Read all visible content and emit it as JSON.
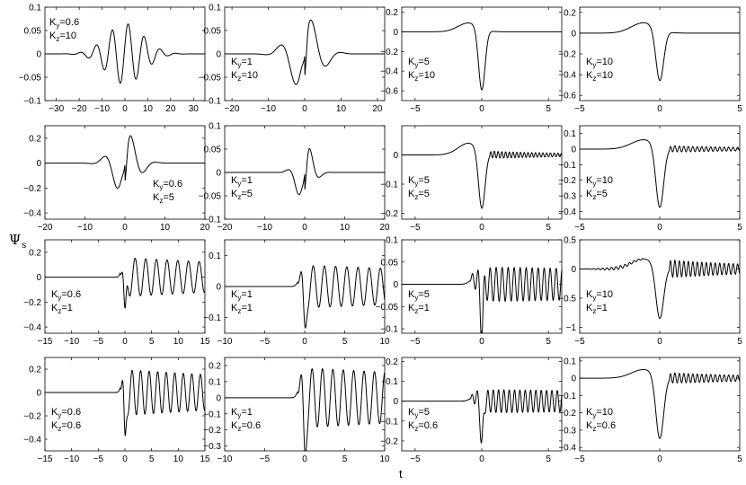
{
  "figure": {
    "ylabel_main": "Ψ",
    "ylabel_sub": "s",
    "xlabel": "t"
  },
  "chart_data": [
    {
      "type": "line",
      "row": 0,
      "col": 0,
      "shape": "gabor",
      "period": 7,
      "decay": 8,
      "amp": 0.065,
      "tick_amp": [
        0.6,
        10
      ],
      "xlim": [
        -35,
        35
      ],
      "ylim": [
        -0.1,
        0.1
      ],
      "xticks": [
        -30,
        -20,
        -10,
        0,
        10,
        20,
        30
      ],
      "xtick_labels": [
        "−30",
        "−20",
        "−10",
        "0",
        "10",
        "20",
        "30"
      ],
      "yticks": [
        -0.1,
        -0.05,
        0,
        0.05,
        0.1
      ],
      "ytick_labels": [
        "−0.1",
        "−0.05",
        "0",
        "0.05",
        "0.1"
      ],
      "annotation": {
        "ky": "0.6",
        "kz": "10",
        "pos": "top-left"
      }
    },
    {
      "type": "line",
      "row": 0,
      "col": 1,
      "shape": "gabor",
      "period": 9,
      "decay": 4,
      "amp": 0.08,
      "sharp": true,
      "xlim": [
        -22,
        22
      ],
      "ylim": [
        -0.1,
        0.1
      ],
      "xticks": [
        -20,
        -10,
        0,
        10,
        20
      ],
      "xtick_labels": [
        "−20",
        "−10",
        "0",
        "10",
        "20"
      ],
      "yticks": [
        -0.1,
        -0.05,
        0,
        0.05,
        0.1
      ],
      "ytick_labels": [
        "−0.1",
        "−0.05",
        "0",
        "0.05",
        "0.1"
      ],
      "annotation": {
        "ky": "1",
        "kz": "10",
        "pos": "bottom-left"
      }
    },
    {
      "type": "line",
      "row": 0,
      "col": 2,
      "shape": "dip",
      "min": -0.63,
      "pre": 0.09,
      "post": 0,
      "xlim": [
        -6,
        6
      ],
      "ylim": [
        -0.7,
        0.25
      ],
      "xticks": [
        -5,
        0,
        5
      ],
      "xtick_labels": [
        "−5",
        "0",
        "5"
      ],
      "yticks": [
        -0.6,
        -0.4,
        -0.2,
        0,
        0.2
      ],
      "ytick_labels": [
        "−0.6",
        "−0.4",
        "−0.2",
        "0",
        "0.2"
      ],
      "annotation": {
        "ky": "5",
        "kz": "10",
        "pos": "bottom-left"
      }
    },
    {
      "type": "line",
      "row": 0,
      "col": 3,
      "shape": "dip",
      "min": -0.5,
      "pre": 0.1,
      "post": 0,
      "xlim": [
        -5,
        5
      ],
      "ylim": [
        -0.65,
        0.25
      ],
      "xticks": [
        -5,
        0,
        5
      ],
      "xtick_labels": [
        "−5",
        "0",
        "5"
      ],
      "yticks": [
        -0.6,
        -0.4,
        -0.2,
        0,
        0.2
      ],
      "ytick_labels": [
        "−0.6",
        "−0.4",
        "−0.2",
        "0",
        "0.2"
      ],
      "annotation": {
        "ky": "10",
        "kz": "10",
        "pos": "bottom-left"
      }
    },
    {
      "type": "line",
      "row": 1,
      "col": 0,
      "shape": "gabor",
      "period": 7,
      "decay": 3,
      "amp": 0.25,
      "sharp": true,
      "xlim": [
        -20,
        20
      ],
      "ylim": [
        -0.45,
        0.3
      ],
      "xticks": [
        -20,
        -10,
        0,
        10,
        20
      ],
      "xtick_labels": [
        "−20",
        "−10",
        "0",
        "10",
        "20"
      ],
      "yticks": [
        -0.4,
        -0.2,
        0,
        0.2
      ],
      "ytick_labels": [
        "−0.4",
        "−0.2",
        "0",
        "0.2"
      ],
      "annotation": {
        "ky": "0.6",
        "kz": "5",
        "pos": "bottom-right"
      }
    },
    {
      "type": "line",
      "row": 1,
      "col": 1,
      "shape": "gabor",
      "period": 6,
      "decay": 2,
      "amp": 0.065,
      "sharp": true,
      "xlim": [
        -20,
        20
      ],
      "ylim": [
        -0.1,
        0.1
      ],
      "xticks": [
        -20,
        -10,
        0,
        10,
        20
      ],
      "xtick_labels": [
        "−20",
        "−10",
        "0",
        "10",
        "20"
      ],
      "yticks": [
        -0.1,
        -0.05,
        0,
        0.05,
        0.1
      ],
      "ytick_labels": [
        "−0.1",
        "−0.05",
        "0",
        "0.05",
        "0.1"
      ],
      "annotation": {
        "ky": "1",
        "kz": "5",
        "pos": "bottom-left"
      }
    },
    {
      "type": "line",
      "row": 1,
      "col": 2,
      "shape": "dip_osc",
      "min": -0.2,
      "pre": 0.04,
      "osc": 0.012,
      "xlim": [
        -6,
        6
      ],
      "ylim": [
        -0.22,
        0.1
      ],
      "xticks": [
        -5,
        0,
        5
      ],
      "xtick_labels": [
        "−5",
        "0",
        "5"
      ],
      "yticks": [
        -0.2,
        -0.1,
        0
      ],
      "ytick_labels": [
        "−0.2",
        "−0.1",
        "0"
      ],
      "annotation": {
        "ky": "5",
        "kz": "5",
        "pos": "bottom-left"
      }
    },
    {
      "type": "line",
      "row": 1,
      "col": 3,
      "shape": "dip_osc",
      "min": -0.4,
      "pre": 0.06,
      "osc": 0.02,
      "xlim": [
        -5,
        5
      ],
      "ylim": [
        -0.45,
        0.15
      ],
      "xticks": [
        -5,
        0,
        5
      ],
      "xtick_labels": [
        "−5",
        "0",
        "5"
      ],
      "yticks": [
        -0.4,
        -0.3,
        -0.2,
        -0.1,
        0,
        0.1
      ],
      "ytick_labels": [
        "−0.4",
        "−0.3",
        "−0.2",
        "−0.1",
        "0",
        "0.1"
      ],
      "annotation": {
        "ky": "10",
        "kz": "5",
        "pos": "bottom-left"
      }
    },
    {
      "type": "line",
      "row": 2,
      "col": 0,
      "shape": "chirp",
      "min": -0.38,
      "amp": 0.16,
      "period": 2.0,
      "xlim": [
        -15,
        15
      ],
      "ylim": [
        -0.45,
        0.3
      ],
      "xticks": [
        -15,
        -10,
        -5,
        0,
        5,
        10,
        15
      ],
      "xtick_labels": [
        "−15",
        "−10",
        "−5",
        "0",
        "5",
        "10",
        "15"
      ],
      "yticks": [
        -0.4,
        -0.2,
        0,
        0.2
      ],
      "ytick_labels": [
        "−0.4",
        "−0.2",
        "0",
        "0.2"
      ],
      "annotation": {
        "ky": "0.6",
        "kz": "1",
        "pos": "bottom-left"
      }
    },
    {
      "type": "line",
      "row": 2,
      "col": 1,
      "shape": "chirp",
      "min": -0.13,
      "amp": 0.07,
      "period": 1.4,
      "xlim": [
        -10,
        10
      ],
      "ylim": [
        -0.15,
        0.15
      ],
      "xticks": [
        -10,
        -5,
        0,
        5,
        10
      ],
      "xtick_labels": [
        "−10",
        "−5",
        "0",
        "5",
        "10"
      ],
      "yticks": [
        -0.1,
        0,
        0.1
      ],
      "ytick_labels": [
        "−0.1",
        "0",
        "0.1"
      ],
      "annotation": {
        "ky": "1",
        "kz": "1",
        "pos": "bottom-left"
      }
    },
    {
      "type": "line",
      "row": 2,
      "col": 2,
      "shape": "chirp",
      "min": -0.1,
      "amp": 0.04,
      "period": 0.45,
      "xlim": [
        -6,
        6
      ],
      "ylim": [
        -0.11,
        0.1
      ],
      "xticks": [
        -5,
        0,
        5
      ],
      "xtick_labels": [
        "−5",
        "0",
        "5"
      ],
      "yticks": [
        -0.1,
        -0.05,
        0,
        0.05,
        0.1
      ],
      "ytick_labels": [
        "−0.1",
        "−0.05",
        "0",
        "0.05",
        "0.1"
      ],
      "annotation": {
        "ky": "5",
        "kz": "1",
        "pos": "bottom-left"
      }
    },
    {
      "type": "line",
      "row": 2,
      "col": 3,
      "shape": "dip_osc",
      "min": -0.92,
      "pre": 0.17,
      "osc": 0.15,
      "preosc": true,
      "xlim": [
        -5,
        5
      ],
      "ylim": [
        -1.1,
        0.5
      ],
      "xticks": [
        -5,
        0,
        5
      ],
      "xtick_labels": [
        "−5",
        "0",
        "5"
      ],
      "yticks": [
        -1,
        -0.5,
        0,
        0.5
      ],
      "ytick_labels": [
        "−1",
        "−0.5",
        "0",
        "0.5"
      ],
      "annotation": {
        "ky": "10",
        "kz": "1",
        "pos": "bottom-left"
      }
    },
    {
      "type": "line",
      "row": 3,
      "col": 0,
      "shape": "chirp",
      "min": -0.45,
      "amp": 0.2,
      "period": 1.6,
      "xlim": [
        -15,
        15
      ],
      "ylim": [
        -0.5,
        0.3
      ],
      "xticks": [
        -15,
        -10,
        -5,
        0,
        5,
        10,
        15
      ],
      "xtick_labels": [
        "−15",
        "−10",
        "−5",
        "0",
        "5",
        "10",
        "15"
      ],
      "yticks": [
        -0.4,
        -0.2,
        0,
        0.2
      ],
      "ytick_labels": [
        "−0.4",
        "−0.2",
        "0",
        "0.2"
      ],
      "annotation": {
        "ky": "0.6",
        "kz": "0.6",
        "pos": "bottom-left"
      }
    },
    {
      "type": "line",
      "row": 3,
      "col": 1,
      "shape": "chirp",
      "min": -0.3,
      "amp": 0.19,
      "period": 1.3,
      "xlim": [
        -10,
        10
      ],
      "ylim": [
        -0.33,
        0.25
      ],
      "xticks": [
        -10,
        -5,
        0,
        5,
        10
      ],
      "xtick_labels": [
        "−10",
        "−5",
        "0",
        "5",
        "10"
      ],
      "yticks": [
        -0.3,
        -0.2,
        -0.1,
        0,
        0.1,
        0.2
      ],
      "ytick_labels": [
        "−0.3",
        "−0.2",
        "−0.1",
        "0",
        "0.1",
        "0.2"
      ],
      "annotation": {
        "ky": "1",
        "kz": "0.6",
        "pos": "bottom-left"
      }
    },
    {
      "type": "line",
      "row": 3,
      "col": 2,
      "shape": "chirp",
      "min": -0.23,
      "amp": 0.06,
      "period": 0.4,
      "xlim": [
        -6,
        6
      ],
      "ylim": [
        -0.25,
        0.22
      ],
      "xticks": [
        -5,
        0,
        5
      ],
      "xtick_labels": [
        "−5",
        "0",
        "5"
      ],
      "yticks": [
        -0.2,
        -0.1,
        0,
        0.1,
        0.2
      ],
      "ytick_labels": [
        "−0.2",
        "−0.1",
        "0",
        "0.1",
        "0.2"
      ],
      "annotation": {
        "ky": "5",
        "kz": "0.6",
        "pos": "bottom-left"
      }
    },
    {
      "type": "line",
      "row": 3,
      "col": 3,
      "shape": "dip_osc",
      "min": -0.37,
      "pre": 0.05,
      "osc": 0.03,
      "xlim": [
        -5,
        5
      ],
      "ylim": [
        -0.42,
        0.12
      ],
      "xticks": [
        -5,
        0,
        5
      ],
      "xtick_labels": [
        "−5",
        "0",
        "5"
      ],
      "yticks": [
        -0.4,
        -0.3,
        -0.2,
        -0.1,
        0,
        0.1
      ],
      "ytick_labels": [
        "−0.4",
        "−0.3",
        "−0.2",
        "−0.1",
        "0",
        "0.1"
      ],
      "annotation": {
        "ky": "10",
        "kz": "0.6",
        "pos": "bottom-left"
      }
    }
  ]
}
